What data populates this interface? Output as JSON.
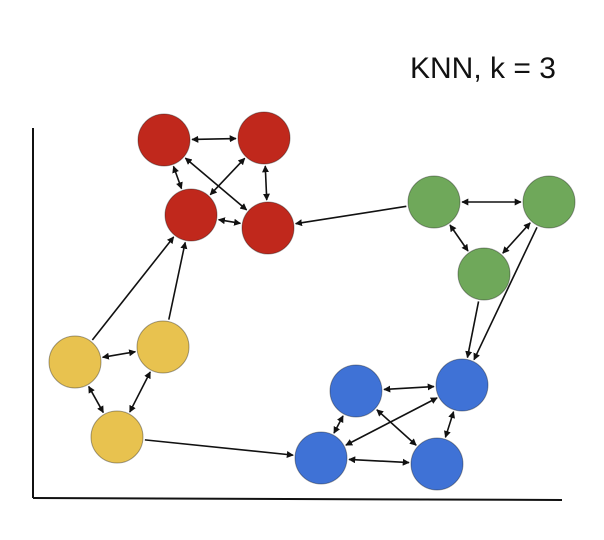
{
  "title": "KNN, k = 3",
  "colors": {
    "red": "#c0281c",
    "green": "#6fa85a",
    "yellow": "#e8c24f",
    "blue": "#3f72d6",
    "edge": "#111111"
  },
  "nodes": [
    {
      "id": "r1",
      "group": "red"
    },
    {
      "id": "r2",
      "group": "red"
    },
    {
      "id": "r3",
      "group": "red"
    },
    {
      "id": "r4",
      "group": "red"
    },
    {
      "id": "g1",
      "group": "green"
    },
    {
      "id": "g2",
      "group": "green"
    },
    {
      "id": "g3",
      "group": "green"
    },
    {
      "id": "y1",
      "group": "yellow"
    },
    {
      "id": "y2",
      "group": "yellow"
    },
    {
      "id": "y3",
      "group": "yellow"
    },
    {
      "id": "b1",
      "group": "blue"
    },
    {
      "id": "b2",
      "group": "blue"
    },
    {
      "id": "b3",
      "group": "blue"
    },
    {
      "id": "b4",
      "group": "blue"
    }
  ],
  "edges": [
    {
      "from": "r1",
      "to": "r2",
      "bidirectional": true
    },
    {
      "from": "r1",
      "to": "r3",
      "bidirectional": true
    },
    {
      "from": "r1",
      "to": "r4",
      "bidirectional": true
    },
    {
      "from": "r2",
      "to": "r3",
      "bidirectional": true
    },
    {
      "from": "r2",
      "to": "r4",
      "bidirectional": true
    },
    {
      "from": "r3",
      "to": "r4",
      "bidirectional": true
    },
    {
      "from": "g1",
      "to": "r4",
      "bidirectional": false
    },
    {
      "from": "g1",
      "to": "g2",
      "bidirectional": true
    },
    {
      "from": "g1",
      "to": "g3",
      "bidirectional": true
    },
    {
      "from": "g2",
      "to": "g3",
      "bidirectional": true
    },
    {
      "from": "g3",
      "to": "b2",
      "bidirectional": false
    },
    {
      "from": "g2",
      "to": "b2",
      "bidirectional": false
    },
    {
      "from": "y1",
      "to": "r3",
      "bidirectional": false
    },
    {
      "from": "y2",
      "to": "r3",
      "bidirectional": false
    },
    {
      "from": "y1",
      "to": "y2",
      "bidirectional": true
    },
    {
      "from": "y1",
      "to": "y3",
      "bidirectional": true
    },
    {
      "from": "y2",
      "to": "y3",
      "bidirectional": true
    },
    {
      "from": "y3",
      "to": "b3",
      "bidirectional": false
    },
    {
      "from": "b1",
      "to": "b2",
      "bidirectional": true
    },
    {
      "from": "b1",
      "to": "b3",
      "bidirectional": true
    },
    {
      "from": "b1",
      "to": "b4",
      "bidirectional": true
    },
    {
      "from": "b2",
      "to": "b3",
      "bidirectional": true
    },
    {
      "from": "b2",
      "to": "b4",
      "bidirectional": true
    },
    {
      "from": "b3",
      "to": "b4",
      "bidirectional": true
    }
  ]
}
